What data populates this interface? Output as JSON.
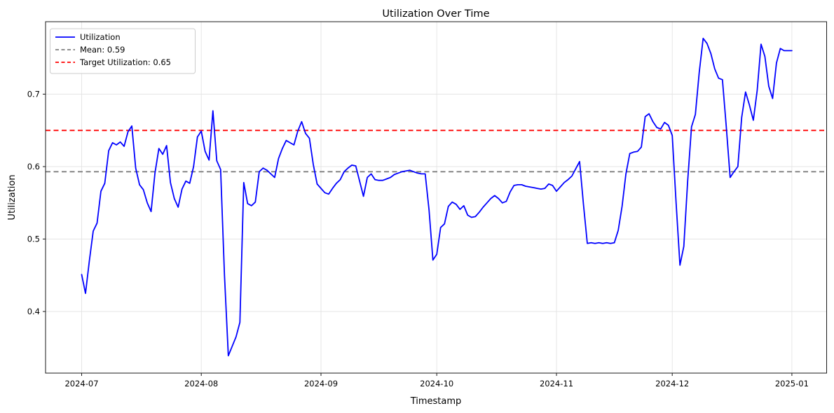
{
  "figure": {
    "background": "#ffffff",
    "grid_color": "#e4e4e4",
    "spine_color": "#1a1a1a"
  },
  "chart_data": {
    "type": "line",
    "title": "Utilization Over Time",
    "xlabel": "Timestamp",
    "ylabel": "Utilization",
    "grid": true,
    "legend_position": "upper-left",
    "x_start_date": "2024-07-01",
    "x_step_days": 1,
    "x_tick_labels": [
      "2024-07",
      "2024-08",
      "2024-09",
      "2024-10",
      "2024-11",
      "2024-12",
      "2025-01"
    ],
    "x_tick_day_offsets": [
      0,
      31,
      62,
      92,
      123,
      153,
      184
    ],
    "y_ticks": [
      "0.4",
      "0.5",
      "0.6",
      "0.7"
    ],
    "xlim_days": [
      -9.35,
      193.0
    ],
    "ylim": [
      0.315,
      0.8
    ],
    "series": [
      {
        "name": "Utilization",
        "type": "line",
        "color": "#0000ff",
        "dash": "solid",
        "values": [
          0.451,
          0.425,
          0.47,
          0.511,
          0.522,
          0.566,
          0.577,
          0.622,
          0.633,
          0.63,
          0.634,
          0.628,
          0.648,
          0.656,
          0.598,
          0.575,
          0.568,
          0.55,
          0.538,
          0.591,
          0.625,
          0.617,
          0.629,
          0.578,
          0.556,
          0.544,
          0.569,
          0.58,
          0.577,
          0.6,
          0.641,
          0.649,
          0.621,
          0.609,
          0.677,
          0.608,
          0.596,
          0.45,
          0.339,
          0.352,
          0.365,
          0.385,
          0.578,
          0.549,
          0.546,
          0.551,
          0.593,
          0.598,
          0.595,
          0.59,
          0.585,
          0.611,
          0.625,
          0.636,
          0.633,
          0.63,
          0.649,
          0.662,
          0.646,
          0.639,
          0.603,
          0.576,
          0.57,
          0.564,
          0.562,
          0.57,
          0.577,
          0.582,
          0.593,
          0.598,
          0.602,
          0.601,
          0.58,
          0.559,
          0.585,
          0.59,
          0.582,
          0.581,
          0.581,
          0.583,
          0.585,
          0.589,
          0.591,
          0.593,
          0.594,
          0.595,
          0.593,
          0.591,
          0.59,
          0.59,
          0.54,
          0.471,
          0.479,
          0.516,
          0.521,
          0.545,
          0.551,
          0.548,
          0.541,
          0.546,
          0.533,
          0.53,
          0.531,
          0.537,
          0.544,
          0.55,
          0.556,
          0.56,
          0.556,
          0.55,
          0.552,
          0.565,
          0.574,
          0.575,
          0.575,
          0.573,
          0.572,
          0.571,
          0.57,
          0.569,
          0.57,
          0.576,
          0.574,
          0.566,
          0.572,
          0.578,
          0.582,
          0.587,
          0.597,
          0.607,
          0.548,
          0.494,
          0.495,
          0.494,
          0.495,
          0.494,
          0.495,
          0.494,
          0.495,
          0.512,
          0.545,
          0.59,
          0.618,
          0.62,
          0.621,
          0.627,
          0.669,
          0.673,
          0.662,
          0.654,
          0.652,
          0.661,
          0.657,
          0.643,
          0.55,
          0.464,
          0.49,
          0.58,
          0.655,
          0.672,
          0.73,
          0.777,
          0.77,
          0.756,
          0.735,
          0.722,
          0.72,
          0.655,
          0.585,
          0.593,
          0.6,
          0.668,
          0.703,
          0.685,
          0.664,
          0.705,
          0.769,
          0.752,
          0.711,
          0.694,
          0.743,
          0.763,
          0.76,
          0.76,
          0.76
        ]
      },
      {
        "name": "Mean: 0.59",
        "type": "hline",
        "color": "#7f7f7f",
        "dash": "dashed",
        "value": 0.593
      },
      {
        "name": "Target Utilization: 0.65",
        "type": "hline",
        "color": "#ff0000",
        "dash": "dashed",
        "value": 0.65
      }
    ]
  }
}
